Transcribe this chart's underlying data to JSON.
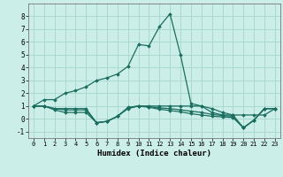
{
  "xlabel": "Humidex (Indice chaleur)",
  "background_color": "#cceee8",
  "grid_color": "#aad8d0",
  "line_color": "#1a6e60",
  "xlim": [
    -0.5,
    23.5
  ],
  "ylim": [
    -1.5,
    9.0
  ],
  "xticks": [
    0,
    1,
    2,
    3,
    4,
    5,
    6,
    7,
    8,
    9,
    10,
    11,
    12,
    13,
    14,
    15,
    16,
    17,
    18,
    19,
    20,
    21,
    22,
    23
  ],
  "yticks": [
    -1,
    0,
    1,
    2,
    3,
    4,
    5,
    6,
    7,
    8
  ],
  "lines": [
    {
      "x": [
        0,
        1,
        2,
        3,
        4,
        5,
        6,
        7,
        8,
        9,
        10,
        11,
        12,
        13,
        14,
        15,
        16,
        17,
        18,
        19,
        20,
        21,
        22,
        23
      ],
      "y": [
        1.0,
        1.5,
        1.5,
        2.0,
        2.2,
        2.5,
        3.0,
        3.2,
        3.5,
        4.1,
        5.8,
        5.7,
        7.2,
        8.2,
        5.0,
        1.2,
        1.0,
        0.5,
        0.3,
        0.3,
        -0.7,
        -0.1,
        0.8,
        0.8
      ]
    },
    {
      "x": [
        0,
        1,
        2,
        3,
        4,
        5,
        6,
        7,
        8,
        9,
        10,
        11,
        12,
        13,
        14,
        15,
        16,
        17,
        18,
        19,
        20,
        21,
        22,
        23
      ],
      "y": [
        1.0,
        1.0,
        0.8,
        0.8,
        0.8,
        0.8,
        -0.3,
        -0.2,
        0.2,
        0.9,
        1.0,
        1.0,
        1.0,
        1.0,
        1.0,
        1.0,
        1.0,
        0.8,
        0.5,
        0.3,
        0.3,
        0.3,
        0.3,
        0.8
      ]
    },
    {
      "x": [
        0,
        1,
        2,
        3,
        4,
        5,
        6,
        7,
        8,
        9,
        10,
        11,
        12,
        13,
        14,
        15,
        16,
        17,
        18,
        19,
        20,
        21,
        22,
        23
      ],
      "y": [
        1.0,
        1.0,
        0.8,
        0.7,
        0.7,
        0.7,
        -0.3,
        -0.2,
        0.2,
        0.85,
        1.0,
        0.95,
        0.85,
        0.8,
        0.7,
        0.6,
        0.5,
        0.35,
        0.25,
        0.2,
        -0.7,
        -0.1,
        0.8,
        0.8
      ]
    },
    {
      "x": [
        0,
        1,
        2,
        3,
        4,
        5,
        6,
        7,
        8,
        9,
        10,
        11,
        12,
        13,
        14,
        15,
        16,
        17,
        18,
        19,
        20,
        21,
        22,
        23
      ],
      "y": [
        1.0,
        1.0,
        0.7,
        0.5,
        0.5,
        0.5,
        -0.3,
        -0.2,
        0.2,
        0.8,
        1.0,
        0.9,
        0.75,
        0.65,
        0.55,
        0.4,
        0.3,
        0.2,
        0.15,
        0.1,
        -0.7,
        -0.1,
        0.8,
        0.8
      ]
    }
  ]
}
